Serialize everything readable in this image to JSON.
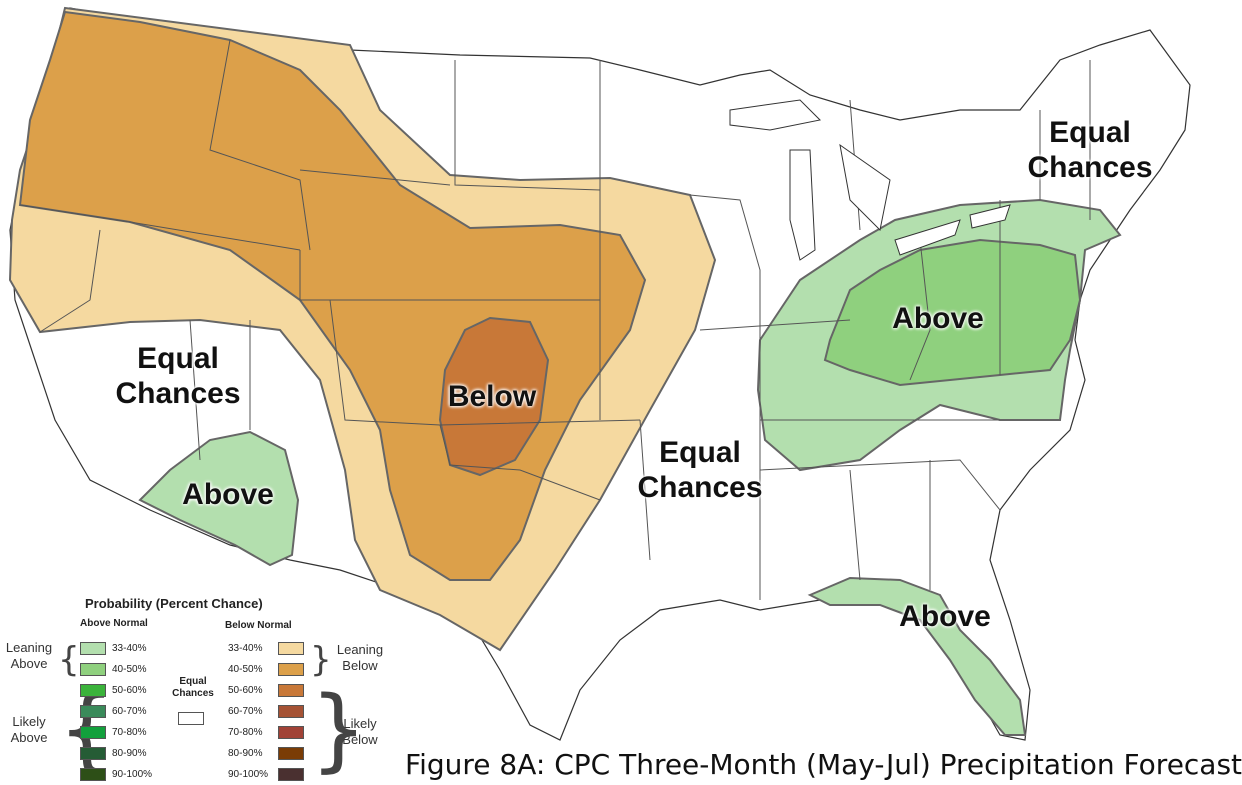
{
  "regions": {
    "west_equal": "Equal\nChances",
    "sw_above": "Above",
    "below": "Below",
    "central_equal": "Equal\nChances",
    "ne_equal": "Equal\nChances",
    "east_above": "Above",
    "se_above": "Above"
  },
  "legend": {
    "title": "Probability (Percent Chance)",
    "above_header": "Above Normal",
    "below_header": "Below Normal",
    "equal": "Equal\nChances",
    "leaning_above": "Leaning\nAbove",
    "likely_above": "Likely\nAbove",
    "leaning_below": "Leaning\nBelow",
    "likely_below": "Likely\nBelow",
    "above": [
      {
        "range": "33-40%",
        "color": "#b3dfae"
      },
      {
        "range": "40-50%",
        "color": "#8fd07e"
      },
      {
        "range": "50-60%",
        "color": "#3bb33b"
      },
      {
        "range": "60-70%",
        "color": "#3a8a5a"
      },
      {
        "range": "70-80%",
        "color": "#12a03c"
      },
      {
        "range": "80-90%",
        "color": "#255c35"
      },
      {
        "range": "90-100%",
        "color": "#2d4f17"
      }
    ],
    "below": [
      {
        "range": "33-40%",
        "color": "#f5d9a0"
      },
      {
        "range": "40-50%",
        "color": "#dca04a"
      },
      {
        "range": "50-60%",
        "color": "#c87838"
      },
      {
        "range": "60-70%",
        "color": "#a55234"
      },
      {
        "range": "70-80%",
        "color": "#a14236"
      },
      {
        "range": "80-90%",
        "color": "#7a3c06"
      },
      {
        "range": "90-100%",
        "color": "#4a3030"
      }
    ]
  },
  "caption": "Figure 8A: CPC Three-Month (May-Jul) Precipitation Forecast"
}
